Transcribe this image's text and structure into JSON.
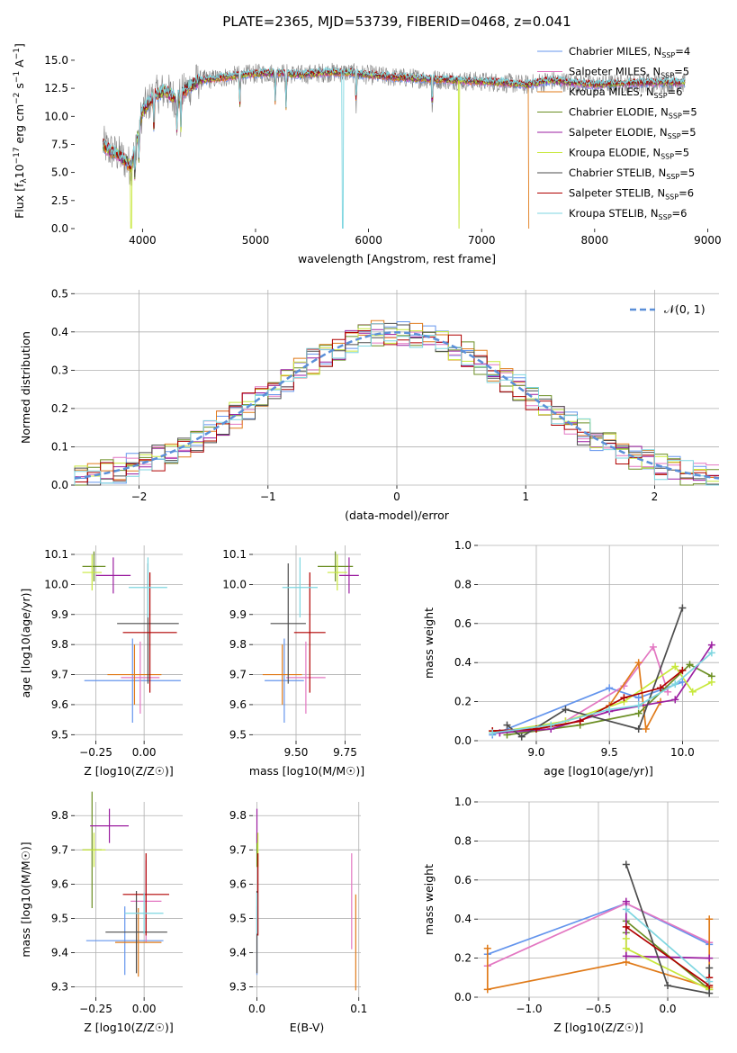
{
  "title": "PLATE=2365, MJD=53739, FIBERID=0468, z=0.041",
  "colors": {
    "Chabrier MILES": "#6495ed",
    "Salpeter MILES": "#e377c2",
    "Kroupa MILES": "#e07b1a",
    "Chabrier ELODIE": "#6b8e23",
    "Salpeter ELODIE": "#9b1ea0",
    "Kroupa ELODIE": "#c8e83c",
    "Chabrier STELIB": "#4d4d4d",
    "Salpeter STELIB": "#b00000",
    "Kroupa STELIB": "#7ed6e0"
  },
  "chart_data": [
    {
      "id": "spectrum",
      "type": "line",
      "title": "PLATE=2365, MJD=53739, FIBERID=0468, z=0.041",
      "xlabel": "wavelength [Angstrom, rest frame]",
      "ylabel": "Flux [f_λ 10^-17 erg cm^-2 s^-1 A^-1]",
      "xlim": [
        3400,
        9100
      ],
      "ylim": [
        0,
        17.4
      ],
      "xticks": [
        "4000",
        "5000",
        "6000",
        "7000",
        "8000",
        "9000"
      ],
      "yticks": [
        "0.0",
        "2.5",
        "5.0",
        "7.5",
        "10.0",
        "12.5",
        "15.0"
      ],
      "grid": false,
      "legend_position": "top-right",
      "legend": [
        {
          "name": "Chabrier MILES",
          "nssp": "4"
        },
        {
          "name": "Salpeter MILES",
          "nssp": "5"
        },
        {
          "name": "Kroupa MILES",
          "nssp": "6"
        },
        {
          "name": "Chabrier ELODIE",
          "nssp": "5"
        },
        {
          "name": "Salpeter ELODIE",
          "nssp": "5"
        },
        {
          "name": "Kroupa ELODIE",
          "nssp": "5"
        },
        {
          "name": "Chabrier STELIB",
          "nssp": "5"
        },
        {
          "name": "Salpeter STELIB",
          "nssp": "6"
        },
        {
          "name": "Kroupa STELIB",
          "nssp": "6"
        }
      ],
      "continuum": {
        "x": [
          3650,
          3700,
          3800,
          3900,
          3950,
          4000,
          4100,
          4200,
          4300,
          4400,
          4500,
          4600,
          4800,
          5000,
          5200,
          5400,
          5600,
          5800,
          6000,
          6200,
          6400,
          6600,
          6800,
          7000,
          7200,
          7400,
          7600,
          7800,
          8000,
          8200,
          8400,
          8600,
          8800
        ],
        "y": [
          7.5,
          7.0,
          6.5,
          5.5,
          8.0,
          10.5,
          11.8,
          12.3,
          11.5,
          12.5,
          13.2,
          13.3,
          13.6,
          13.8,
          13.9,
          13.7,
          13.9,
          13.9,
          13.7,
          13.5,
          13.4,
          13.3,
          13.2,
          13.1,
          13.0,
          12.8,
          13.2,
          13.0,
          12.8,
          12.9,
          13.0,
          13.0,
          13.0
        ]
      },
      "absorption_lines": [
        3934,
        3969,
        4101,
        4305,
        4340,
        4861,
        5175,
        5270,
        5890,
        6563
      ],
      "dropouts": [
        {
          "x": 5770,
          "series": "Kroupa STELIB"
        },
        {
          "x": 6800,
          "series": "Kroupa ELODIE"
        },
        {
          "x": 7420,
          "series": "Kroupa MILES"
        },
        {
          "x": 3900,
          "series": "Kroupa ELODIE"
        }
      ]
    },
    {
      "id": "residuals",
      "type": "histogram",
      "xlabel": "(data-model)/error",
      "ylabel": "Normed distribution",
      "xlim": [
        -2.5,
        2.5
      ],
      "ylim": [
        0,
        0.51
      ],
      "xticks": [
        "−2",
        "−1",
        "0",
        "1",
        "2"
      ],
      "yticks": [
        "0.0",
        "0.1",
        "0.2",
        "0.3",
        "0.4",
        "0.5"
      ],
      "grid": true,
      "legend_position": "top-right",
      "reference_label": "𝒩(0, 1)",
      "bin_width": 0.1
    },
    {
      "id": "age_vs_Z",
      "type": "errorbar",
      "xlabel": "Z [log10(Z/Z☉)]",
      "ylabel": "age [log10(age/yr)]",
      "xlim": [
        -0.36,
        0.2
      ],
      "ylim": [
        9.48,
        10.13
      ],
      "xticks": [
        {
          "v": -0.25,
          "t": "−0.25"
        },
        {
          "v": 0,
          "t": "0.00"
        }
      ],
      "yticks": [
        {
          "v": 9.5,
          "t": "9.5"
        },
        {
          "v": 9.6,
          "t": "9.6"
        },
        {
          "v": 9.7,
          "t": "9.7"
        },
        {
          "v": 9.8,
          "t": "9.8"
        },
        {
          "v": 9.9,
          "t": "9.9"
        },
        {
          "v": 10.0,
          "t": "10.0"
        },
        {
          "v": 10.1,
          "t": "10.1"
        }
      ],
      "points": [
        {
          "series": "Chabrier MILES",
          "x": -0.06,
          "y": 9.68,
          "xerr": 0.25,
          "yerr": 0.14
        },
        {
          "series": "Salpeter MILES",
          "x": -0.02,
          "y": 9.69,
          "xerr": 0.1,
          "yerr": 0.12
        },
        {
          "series": "Kroupa MILES",
          "x": -0.05,
          "y": 9.7,
          "xerr": 0.14,
          "yerr": 0.1
        },
        {
          "series": "Chabrier ELODIE",
          "x": -0.26,
          "y": 10.06,
          "xerr": 0.06,
          "yerr": 0.05
        },
        {
          "series": "Salpeter ELODIE",
          "x": -0.16,
          "y": 10.03,
          "xerr": 0.09,
          "yerr": 0.06
        },
        {
          "series": "Kroupa ELODIE",
          "x": -0.27,
          "y": 10.04,
          "xerr": 0.05,
          "yerr": 0.06
        },
        {
          "series": "Chabrier STELIB",
          "x": 0.02,
          "y": 9.87,
          "xerr": 0.16,
          "yerr": 0.2
        },
        {
          "series": "Salpeter STELIB",
          "x": 0.03,
          "y": 9.84,
          "xerr": 0.14,
          "yerr": 0.2
        },
        {
          "series": "Kroupa STELIB",
          "x": 0.02,
          "y": 9.99,
          "xerr": 0.1,
          "yerr": 0.1
        }
      ]
    },
    {
      "id": "age_vs_mass",
      "type": "errorbar",
      "xlabel": "mass [log10(M/M☉)]",
      "ylabel": "",
      "xlim": [
        9.28,
        9.83
      ],
      "ylim": [
        9.48,
        10.13
      ],
      "xticks": [
        {
          "v": 9.5,
          "t": "9.50"
        },
        {
          "v": 9.75,
          "t": "9.75"
        }
      ],
      "yticks": [
        {
          "v": 9.5,
          "t": "9.5"
        },
        {
          "v": 9.6,
          "t": "9.6"
        },
        {
          "v": 9.7,
          "t": "9.7"
        },
        {
          "v": 9.8,
          "t": "9.8"
        },
        {
          "v": 9.9,
          "t": "9.9"
        },
        {
          "v": 10.0,
          "t": "10.0"
        },
        {
          "v": 10.1,
          "t": "10.1"
        }
      ],
      "points": [
        {
          "series": "Chabrier MILES",
          "x": 9.44,
          "y": 9.68,
          "xerr": 0.1,
          "yerr": 0.14
        },
        {
          "series": "Salpeter MILES",
          "x": 9.55,
          "y": 9.69,
          "xerr": 0.1,
          "yerr": 0.12
        },
        {
          "series": "Kroupa MILES",
          "x": 9.43,
          "y": 9.7,
          "xerr": 0.1,
          "yerr": 0.1
        },
        {
          "series": "Chabrier ELODIE",
          "x": 9.7,
          "y": 10.06,
          "xerr": 0.09,
          "yerr": 0.05
        },
        {
          "series": "Salpeter ELODIE",
          "x": 9.77,
          "y": 10.03,
          "xerr": 0.05,
          "yerr": 0.06
        },
        {
          "series": "Kroupa ELODIE",
          "x": 9.71,
          "y": 10.04,
          "xerr": 0.05,
          "yerr": 0.06
        },
        {
          "series": "Chabrier STELIB",
          "x": 9.46,
          "y": 9.87,
          "xerr": 0.09,
          "yerr": 0.2
        },
        {
          "series": "Salpeter STELIB",
          "x": 9.57,
          "y": 9.84,
          "xerr": 0.08,
          "yerr": 0.2
        },
        {
          "series": "Kroupa STELIB",
          "x": 9.52,
          "y": 9.99,
          "xerr": 0.09,
          "yerr": 0.1
        }
      ]
    },
    {
      "id": "weight_vs_age",
      "type": "line",
      "xlabel": "age [log10(age/yr)]",
      "ylabel": "mass weight",
      "xlim": [
        8.6,
        10.25
      ],
      "ylim": [
        0,
        1.0
      ],
      "xticks": [
        {
          "v": 9.0,
          "t": "9.0"
        },
        {
          "v": 9.5,
          "t": "9.5"
        },
        {
          "v": 10.0,
          "t": "10.0"
        }
      ],
      "yticks": [
        {
          "v": 0,
          "t": "0.0"
        },
        {
          "v": 0.2,
          "t": "0.2"
        },
        {
          "v": 0.4,
          "t": "0.4"
        },
        {
          "v": 0.6,
          "t": "0.6"
        },
        {
          "v": 0.8,
          "t": "0.8"
        },
        {
          "v": 1.0,
          "t": "1.0"
        }
      ],
      "series": [
        {
          "name": "Chabrier MILES",
          "x": [
            8.7,
            9.5,
            9.7,
            10.0
          ],
          "y": [
            0.03,
            0.27,
            0.22,
            0.3
          ]
        },
        {
          "name": "Salpeter MILES",
          "x": [
            8.75,
            9.2,
            9.6,
            9.8,
            9.9
          ],
          "y": [
            0.04,
            0.1,
            0.28,
            0.48,
            0.25
          ]
        },
        {
          "name": "Kroupa MILES",
          "x": [
            8.7,
            9.0,
            9.3,
            9.5,
            9.7,
            9.75,
            9.85
          ],
          "y": [
            0.05,
            0.06,
            0.1,
            0.18,
            0.4,
            0.06,
            0.2
          ]
        },
        {
          "name": "Chabrier ELODIE",
          "x": [
            8.8,
            9.3,
            9.7,
            10.05,
            10.2
          ],
          "y": [
            0.03,
            0.08,
            0.14,
            0.39,
            0.33
          ]
        },
        {
          "name": "Salpeter ELODIE",
          "x": [
            8.75,
            9.1,
            9.5,
            9.95,
            10.2
          ],
          "y": [
            0.04,
            0.06,
            0.15,
            0.21,
            0.49
          ]
        },
        {
          "name": "Kroupa ELODIE",
          "x": [
            8.7,
            9.2,
            9.6,
            9.95,
            10.07,
            10.2
          ],
          "y": [
            0.04,
            0.1,
            0.2,
            0.38,
            0.25,
            0.3
          ]
        },
        {
          "name": "Chabrier STELIB",
          "x": [
            8.8,
            8.9,
            9.2,
            9.7,
            10.0
          ],
          "y": [
            0.08,
            0.02,
            0.16,
            0.06,
            0.68
          ]
        },
        {
          "name": "Salpeter STELIB",
          "x": [
            8.7,
            9.0,
            9.3,
            9.6,
            9.85,
            10.0
          ],
          "y": [
            0.05,
            0.06,
            0.1,
            0.22,
            0.27,
            0.36
          ]
        },
        {
          "name": "Kroupa STELIB",
          "x": [
            8.7,
            9.1,
            9.5,
            9.7,
            9.95,
            10.2
          ],
          "y": [
            0.04,
            0.08,
            0.16,
            0.18,
            0.29,
            0.45
          ]
        }
      ]
    },
    {
      "id": "mass_vs_Z",
      "type": "errorbar",
      "xlabel": "Z [log10(Z/Z☉)]",
      "ylabel": "mass [log10(M/M☉)]",
      "xlim": [
        -0.36,
        0.2
      ],
      "ylim": [
        9.27,
        9.84
      ],
      "xticks": [
        {
          "v": -0.25,
          "t": "−0.25"
        },
        {
          "v": 0,
          "t": "0.00"
        }
      ],
      "yticks": [
        {
          "v": 9.3,
          "t": "9.3"
        },
        {
          "v": 9.4,
          "t": "9.4"
        },
        {
          "v": 9.5,
          "t": "9.5"
        },
        {
          "v": 9.6,
          "t": "9.6"
        },
        {
          "v": 9.7,
          "t": "9.7"
        },
        {
          "v": 9.8,
          "t": "9.8"
        }
      ],
      "points": [
        {
          "series": "Chabrier MILES",
          "x": -0.1,
          "y": 9.435,
          "xerr": 0.2,
          "yerr": 0.1
        },
        {
          "series": "Salpeter MILES",
          "x": 0.01,
          "y": 9.55,
          "xerr": 0.08,
          "yerr": 0.12
        },
        {
          "series": "Kroupa MILES",
          "x": -0.03,
          "y": 9.43,
          "xerr": 0.12,
          "yerr": 0.1
        },
        {
          "series": "Chabrier ELODIE",
          "x": -0.27,
          "y": 9.7,
          "xerr": 0.05,
          "yerr": 0.17
        },
        {
          "series": "Salpeter ELODIE",
          "x": -0.18,
          "y": 9.77,
          "xerr": 0.1,
          "yerr": 0.05
        },
        {
          "series": "Kroupa ELODIE",
          "x": -0.26,
          "y": 9.7,
          "xerr": 0.06,
          "yerr": 0.05
        },
        {
          "series": "Chabrier STELIB",
          "x": -0.04,
          "y": 9.46,
          "xerr": 0.16,
          "yerr": 0.12
        },
        {
          "series": "Salpeter STELIB",
          "x": 0.01,
          "y": 9.57,
          "xerr": 0.12,
          "yerr": 0.12
        },
        {
          "series": "Kroupa STELIB",
          "x": 0.0,
          "y": 9.515,
          "xerr": 0.1,
          "yerr": 0.06
        }
      ]
    },
    {
      "id": "mass_vs_ebv",
      "type": "errorbar",
      "xlabel": "E(B-V)",
      "ylabel": "",
      "xlim": [
        -0.004,
        0.102
      ],
      "ylim": [
        9.27,
        9.84
      ],
      "xticks": [
        {
          "v": 0,
          "t": "0.0"
        },
        {
          "v": 0.1,
          "t": "0.1"
        }
      ],
      "yticks": [
        {
          "v": 9.3,
          "t": "9.3"
        },
        {
          "v": 9.4,
          "t": "9.4"
        },
        {
          "v": 9.5,
          "t": "9.5"
        },
        {
          "v": 9.6,
          "t": "9.6"
        },
        {
          "v": 9.7,
          "t": "9.7"
        },
        {
          "v": 9.8,
          "t": "9.8"
        }
      ],
      "points": [
        {
          "series": "Chabrier MILES",
          "x": 0.0,
          "y": 9.435,
          "xerr": 0,
          "yerr": 0.1
        },
        {
          "series": "Salpeter MILES",
          "x": 0.093,
          "y": 9.55,
          "xerr": 0,
          "yerr": 0.14
        },
        {
          "series": "Kroupa MILES",
          "x": 0.097,
          "y": 9.43,
          "xerr": 0,
          "yerr": 0.14
        },
        {
          "series": "Chabrier ELODIE",
          "x": 0.0,
          "y": 9.7,
          "xerr": 0,
          "yerr": 0.05
        },
        {
          "series": "Salpeter ELODIE",
          "x": 0.0,
          "y": 9.77,
          "xerr": 0,
          "yerr": 0.05
        },
        {
          "series": "Kroupa ELODIE",
          "x": 0.001,
          "y": 9.7,
          "xerr": 0,
          "yerr": 0.05
        },
        {
          "series": "Chabrier STELIB",
          "x": 0.0,
          "y": 9.46,
          "xerr": 0,
          "yerr": 0.12
        },
        {
          "series": "Salpeter STELIB",
          "x": 0.001,
          "y": 9.57,
          "xerr": 0,
          "yerr": 0.12
        },
        {
          "series": "Kroupa STELIB",
          "x": 0.0,
          "y": 9.515,
          "xerr": 0,
          "yerr": 0.06
        }
      ]
    },
    {
      "id": "weight_vs_Z",
      "type": "line",
      "xlabel": "Z [log10(Z/Z☉)]",
      "ylabel": "mass weight",
      "xlim": [
        -1.37,
        0.37
      ],
      "ylim": [
        0,
        1.0
      ],
      "xticks": [
        {
          "v": -1.0,
          "t": "−1.0"
        },
        {
          "v": -0.5,
          "t": "−0.5"
        },
        {
          "v": 0.0,
          "t": "0.0"
        }
      ],
      "yticks": [
        {
          "v": 0,
          "t": "0.0"
        },
        {
          "v": 0.2,
          "t": "0.2"
        },
        {
          "v": 0.4,
          "t": "0.4"
        },
        {
          "v": 0.6,
          "t": "0.6"
        },
        {
          "v": 0.8,
          "t": "0.8"
        },
        {
          "v": 1.0,
          "t": "1.0"
        }
      ],
      "series": [
        {
          "name": "Chabrier MILES",
          "x": [
            -1.3,
            -0.3,
            0.3
          ],
          "y": [
            0.22,
            0.48,
            0.27
          ]
        },
        {
          "name": "Salpeter MILES",
          "x": [
            -1.3,
            -0.3,
            0.3
          ],
          "y": [
            0.16,
            0.48,
            0.28
          ]
        },
        {
          "name": "Kroupa MILES",
          "x": [
            -1.3,
            -1.3,
            -0.3,
            0.3,
            0.3
          ],
          "y": [
            0.25,
            0.04,
            0.18,
            0.05,
            0.4
          ]
        },
        {
          "name": "Chabrier ELODIE",
          "x": [
            -0.3,
            -0.3,
            0.3
          ],
          "y": [
            0.33,
            0.39,
            0.04
          ]
        },
        {
          "name": "Salpeter ELODIE",
          "x": [
            -0.3,
            -0.3,
            0.3
          ],
          "y": [
            0.49,
            0.21,
            0.2
          ]
        },
        {
          "name": "Kroupa ELODIE",
          "x": [
            -0.3,
            -0.3,
            0.3
          ],
          "y": [
            0.3,
            0.25,
            0.04
          ]
        },
        {
          "name": "Chabrier STELIB",
          "x": [
            -0.3,
            0.0,
            0.3,
            0.3
          ],
          "y": [
            0.68,
            0.06,
            0.02,
            0.15
          ]
        },
        {
          "name": "Salpeter STELIB",
          "x": [
            -0.3,
            0.3,
            0.3
          ],
          "y": [
            0.36,
            0.06,
            0.1
          ]
        },
        {
          "name": "Kroupa STELIB",
          "x": [
            -0.3,
            0.3
          ],
          "y": [
            0.45,
            0.08
          ]
        }
      ]
    }
  ]
}
